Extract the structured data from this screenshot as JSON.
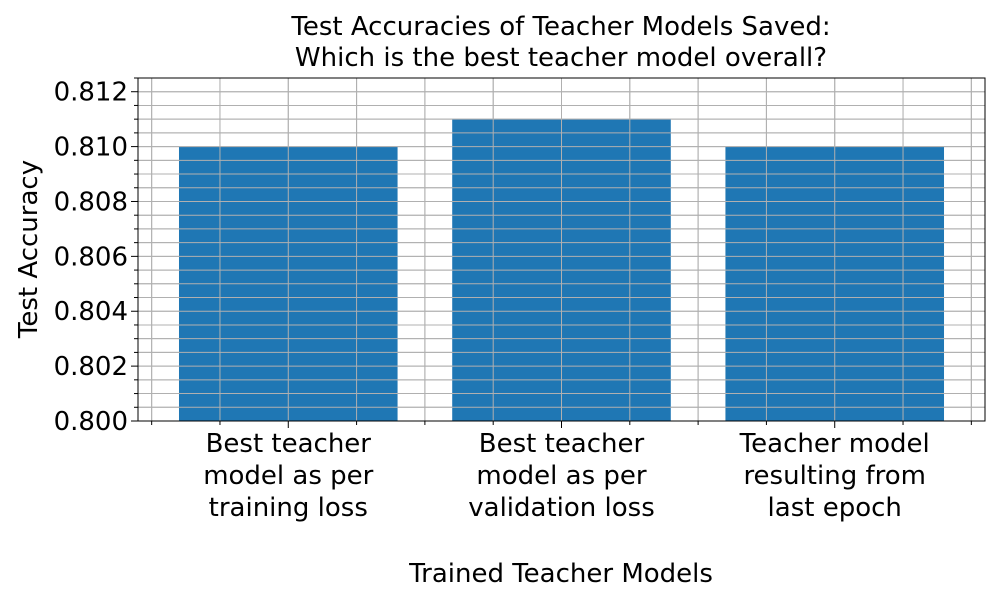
{
  "colors": {
    "bar": "#1f77b4",
    "grid": "#b0b0b0",
    "axis": "#000000",
    "background": "#ffffff"
  },
  "chart_data": {
    "type": "bar",
    "title": "Test Accuracies of Teacher Models Saved:\nWhich is the best teacher model overall?",
    "xlabel": "Trained Teacher Models",
    "ylabel": "Test Accuracy",
    "categories": [
      "Best teacher\nmodel as per\ntraining loss",
      "Best teacher\nmodel as per\nvalidation loss",
      "Teacher model\nresulting from\nlast epoch"
    ],
    "values": [
      0.81,
      0.811,
      0.81
    ],
    "ylim": [
      0.8,
      0.8125
    ],
    "y_major_ticks": [
      "0.800",
      "0.802",
      "0.804",
      "0.806",
      "0.808",
      "0.810",
      "0.812"
    ],
    "y_minor_step": 0.0005,
    "x_minor_per_category": 4,
    "grid": true,
    "grid_which": "both",
    "legend": "none"
  }
}
